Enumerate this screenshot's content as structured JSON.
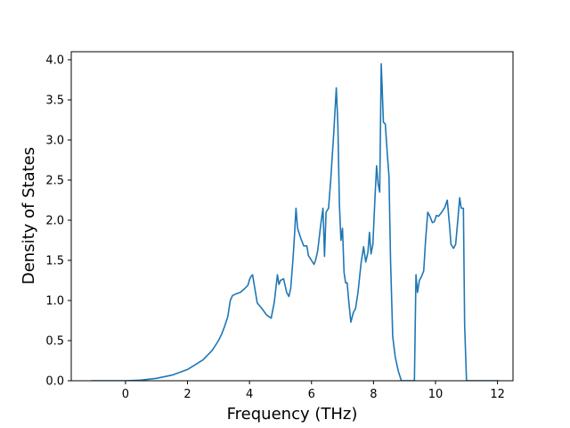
{
  "chart_data": {
    "type": "line",
    "xlabel": "Frequency (THz)",
    "ylabel": "Density of States",
    "xlim": [
      -1.75,
      12.5
    ],
    "ylim": [
      0.0,
      4.1
    ],
    "xticks": [
      0,
      2,
      4,
      6,
      8,
      10,
      12
    ],
    "yticks": [
      0.0,
      0.5,
      1.0,
      1.5,
      2.0,
      2.5,
      3.0,
      3.5,
      4.0
    ],
    "xtick_labels": [
      "0",
      "2",
      "4",
      "6",
      "8",
      "10",
      "12"
    ],
    "ytick_labels": [
      "0.0",
      "0.5",
      "1.0",
      "1.5",
      "2.0",
      "2.5",
      "3.0",
      "3.5",
      "4.0"
    ],
    "grid": false,
    "line_color": "#1f77b4",
    "series": [
      {
        "points": [
          [
            -1.1,
            0.0
          ],
          [
            0.0,
            0.0
          ],
          [
            0.5,
            0.008
          ],
          [
            1.0,
            0.03
          ],
          [
            1.5,
            0.07
          ],
          [
            2.0,
            0.14
          ],
          [
            2.5,
            0.26
          ],
          [
            2.8,
            0.38
          ],
          [
            3.0,
            0.5
          ],
          [
            3.1,
            0.58
          ],
          [
            3.2,
            0.68
          ],
          [
            3.3,
            0.8
          ],
          [
            3.38,
            1.0
          ],
          [
            3.45,
            1.06
          ],
          [
            3.55,
            1.08
          ],
          [
            3.7,
            1.1
          ],
          [
            3.85,
            1.15
          ],
          [
            3.95,
            1.19
          ],
          [
            4.0,
            1.26
          ],
          [
            4.05,
            1.3
          ],
          [
            4.1,
            1.32
          ],
          [
            4.15,
            1.2
          ],
          [
            4.25,
            0.97
          ],
          [
            4.4,
            0.9
          ],
          [
            4.55,
            0.82
          ],
          [
            4.7,
            0.78
          ],
          [
            4.8,
            0.98
          ],
          [
            4.9,
            1.32
          ],
          [
            4.95,
            1.2
          ],
          [
            5.0,
            1.25
          ],
          [
            5.1,
            1.27
          ],
          [
            5.2,
            1.1
          ],
          [
            5.27,
            1.05
          ],
          [
            5.33,
            1.15
          ],
          [
            5.4,
            1.5
          ],
          [
            5.45,
            1.8
          ],
          [
            5.5,
            2.15
          ],
          [
            5.55,
            1.9
          ],
          [
            5.65,
            1.78
          ],
          [
            5.75,
            1.68
          ],
          [
            5.85,
            1.68
          ],
          [
            5.9,
            1.56
          ],
          [
            6.0,
            1.5
          ],
          [
            6.08,
            1.45
          ],
          [
            6.13,
            1.5
          ],
          [
            6.2,
            1.62
          ],
          [
            6.3,
            1.95
          ],
          [
            6.37,
            2.15
          ],
          [
            6.42,
            1.55
          ],
          [
            6.47,
            2.1
          ],
          [
            6.55,
            2.15
          ],
          [
            6.62,
            2.5
          ],
          [
            6.72,
            3.1
          ],
          [
            6.8,
            3.65
          ],
          [
            6.85,
            3.2
          ],
          [
            6.9,
            2.2
          ],
          [
            6.95,
            1.75
          ],
          [
            7.0,
            1.9
          ],
          [
            7.05,
            1.35
          ],
          [
            7.1,
            1.22
          ],
          [
            7.15,
            1.22
          ],
          [
            7.2,
            1.0
          ],
          [
            7.27,
            0.73
          ],
          [
            7.35,
            0.85
          ],
          [
            7.42,
            0.9
          ],
          [
            7.5,
            1.1
          ],
          [
            7.6,
            1.47
          ],
          [
            7.68,
            1.67
          ],
          [
            7.75,
            1.48
          ],
          [
            7.82,
            1.6
          ],
          [
            7.87,
            1.85
          ],
          [
            7.92,
            1.58
          ],
          [
            7.98,
            1.7
          ],
          [
            8.05,
            2.3
          ],
          [
            8.1,
            2.68
          ],
          [
            8.15,
            2.45
          ],
          [
            8.2,
            2.35
          ],
          [
            8.25,
            3.95
          ],
          [
            8.32,
            3.22
          ],
          [
            8.38,
            3.2
          ],
          [
            8.45,
            2.8
          ],
          [
            8.5,
            2.55
          ],
          [
            8.55,
            1.5
          ],
          [
            8.62,
            0.55
          ],
          [
            8.7,
            0.3
          ],
          [
            8.8,
            0.12
          ],
          [
            8.9,
            0.0
          ],
          [
            9.32,
            0.0
          ],
          [
            9.37,
            1.32
          ],
          [
            9.42,
            1.1
          ],
          [
            9.48,
            1.25
          ],
          [
            9.55,
            1.3
          ],
          [
            9.62,
            1.37
          ],
          [
            9.68,
            1.75
          ],
          [
            9.75,
            2.1
          ],
          [
            9.82,
            2.05
          ],
          [
            9.9,
            1.97
          ],
          [
            9.96,
            1.98
          ],
          [
            10.03,
            2.06
          ],
          [
            10.1,
            2.05
          ],
          [
            10.2,
            2.1
          ],
          [
            10.3,
            2.16
          ],
          [
            10.38,
            2.25
          ],
          [
            10.45,
            1.95
          ],
          [
            10.5,
            1.7
          ],
          [
            10.58,
            1.65
          ],
          [
            10.65,
            1.7
          ],
          [
            10.72,
            2.0
          ],
          [
            10.78,
            2.28
          ],
          [
            10.83,
            2.15
          ],
          [
            10.9,
            2.15
          ],
          [
            10.94,
            0.7
          ],
          [
            11.0,
            0.0
          ],
          [
            12.05,
            0.0
          ]
        ]
      }
    ]
  }
}
